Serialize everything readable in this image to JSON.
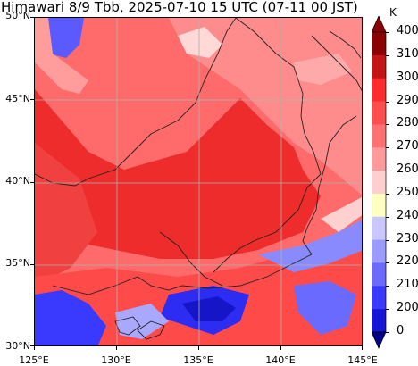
{
  "title": "Himawari 8/9 Tbb, 2025-07-10 15 UTC (07-11 00 JST)",
  "map": {
    "lat_labels": [
      "50°N",
      "45°N",
      "40°N",
      "35°N",
      "30°N"
    ],
    "lon_labels": [
      "125°E",
      "130°E",
      "135°E",
      "140°E",
      "145°E"
    ],
    "lat_range": [
      30,
      50
    ],
    "lon_range": [
      125,
      145
    ]
  },
  "colorbar": {
    "unit": "K",
    "labels": [
      "400",
      "310",
      "300",
      "290",
      "280",
      "270",
      "260",
      "250",
      "240",
      "230",
      "220",
      "210",
      "200",
      "0"
    ],
    "colors": [
      "#8b0000",
      "#c41515",
      "#ff2a2a",
      "#ff4d4d",
      "#ff7070",
      "#ff9a9a",
      "#ffcfcf",
      "#ffffc0",
      "#c8c8ff",
      "#9a9aff",
      "#6b6bff",
      "#3a3aff",
      "#1515d8",
      "#00008b"
    ],
    "extend_top_color": "#8b0000",
    "extend_bottom_color": "#00008b"
  },
  "field_colors": {
    "ocean_north": "#ff7a7a",
    "land_warm": "#f03232",
    "sea_south": "#ff4444",
    "cloud_cold": "#2a2aff",
    "cloud_mid": "#8a8aff",
    "cloud_thin": "#ffffff"
  }
}
